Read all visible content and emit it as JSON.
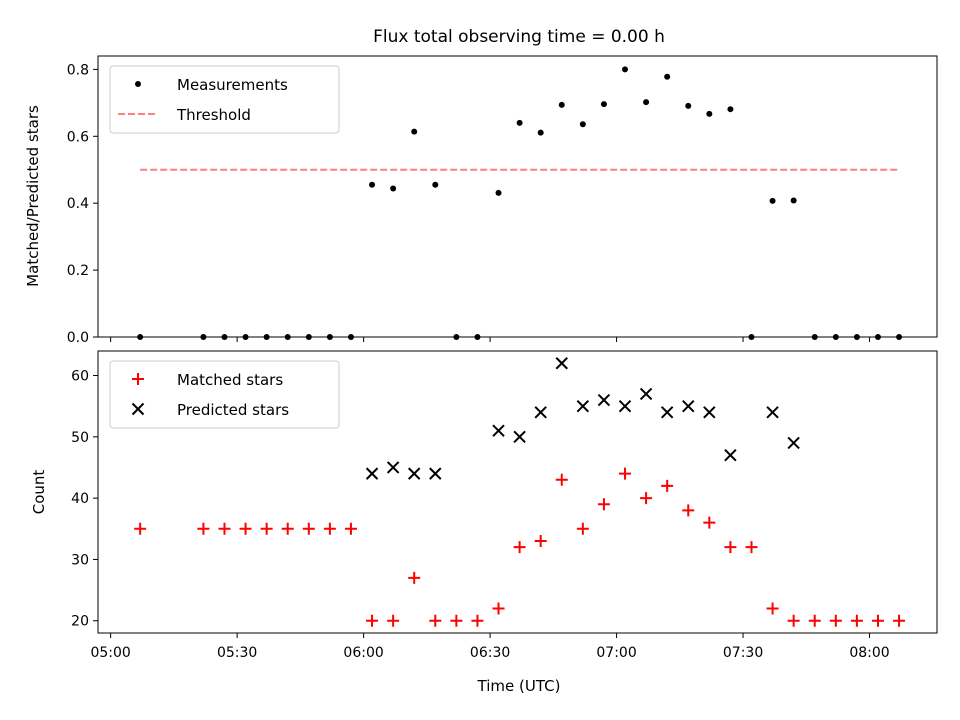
{
  "chart_data": [
    {
      "type": "scatter",
      "title": "Flux total observing time = 0.00 h",
      "xlabel": "",
      "ylabel": "Matched/Predicted stars",
      "xlim": [
        "04:57",
        "08:16"
      ],
      "ylim": [
        0,
        0.84
      ],
      "yticks": [
        0.0,
        0.2,
        0.4,
        0.6,
        0.8
      ],
      "ytick_labels": [
        "0.0",
        "0.2",
        "0.4",
        "0.6",
        "0.8"
      ],
      "legend_position": "top-left",
      "series": [
        {
          "name": "Measurements",
          "marker": "dot",
          "color": "#000000",
          "points": [
            {
              "x": "05:07",
              "y": 0.0
            },
            {
              "x": "05:22",
              "y": 0.0
            },
            {
              "x": "05:27",
              "y": 0.0
            },
            {
              "x": "05:32",
              "y": 0.0
            },
            {
              "x": "05:37",
              "y": 0.0
            },
            {
              "x": "05:42",
              "y": 0.0
            },
            {
              "x": "05:47",
              "y": 0.0
            },
            {
              "x": "05:52",
              "y": 0.0
            },
            {
              "x": "05:57",
              "y": 0.0
            },
            {
              "x": "06:02",
              "y": 0.455
            },
            {
              "x": "06:07",
              "y": 0.444
            },
            {
              "x": "06:12",
              "y": 0.614
            },
            {
              "x": "06:17",
              "y": 0.455
            },
            {
              "x": "06:22",
              "y": 0.0
            },
            {
              "x": "06:27",
              "y": 0.0
            },
            {
              "x": "06:32",
              "y": 0.431
            },
            {
              "x": "06:37",
              "y": 0.64
            },
            {
              "x": "06:42",
              "y": 0.611
            },
            {
              "x": "06:47",
              "y": 0.694
            },
            {
              "x": "06:52",
              "y": 0.636
            },
            {
              "x": "06:57",
              "y": 0.696
            },
            {
              "x": "07:02",
              "y": 0.8
            },
            {
              "x": "07:07",
              "y": 0.702
            },
            {
              "x": "07:12",
              "y": 0.778
            },
            {
              "x": "07:17",
              "y": 0.691
            },
            {
              "x": "07:22",
              "y": 0.667
            },
            {
              "x": "07:27",
              "y": 0.681
            },
            {
              "x": "07:32",
              "y": 0.0
            },
            {
              "x": "07:37",
              "y": 0.407
            },
            {
              "x": "07:42",
              "y": 0.408
            },
            {
              "x": "07:47",
              "y": 0.0
            },
            {
              "x": "07:52",
              "y": 0.0
            },
            {
              "x": "07:57",
              "y": 0.0
            },
            {
              "x": "08:02",
              "y": 0.0
            },
            {
              "x": "08:07",
              "y": 0.0
            }
          ]
        },
        {
          "name": "Threshold",
          "marker": "dashed-line",
          "color": "#ff7f7f",
          "points": [
            {
              "x": "05:07",
              "y": 0.5
            },
            {
              "x": "08:07",
              "y": 0.5
            }
          ]
        }
      ]
    },
    {
      "type": "scatter",
      "title": "",
      "xlabel": "Time (UTC)",
      "ylabel": "Count",
      "xlim": [
        "04:57",
        "08:16"
      ],
      "ylim": [
        18,
        64
      ],
      "xticks": [
        "05:00",
        "05:30",
        "06:00",
        "06:30",
        "07:00",
        "07:30",
        "08:00"
      ],
      "yticks": [
        20,
        30,
        40,
        50,
        60
      ],
      "ytick_labels": [
        "20",
        "30",
        "40",
        "50",
        "60"
      ],
      "legend_position": "top-left",
      "series": [
        {
          "name": "Matched stars",
          "marker": "plus",
          "color": "#ff0000",
          "points": [
            {
              "x": "05:07",
              "y": 35
            },
            {
              "x": "05:22",
              "y": 35
            },
            {
              "x": "05:27",
              "y": 35
            },
            {
              "x": "05:32",
              "y": 35
            },
            {
              "x": "05:37",
              "y": 35
            },
            {
              "x": "05:42",
              "y": 35
            },
            {
              "x": "05:47",
              "y": 35
            },
            {
              "x": "05:52",
              "y": 35
            },
            {
              "x": "05:57",
              "y": 35
            },
            {
              "x": "06:02",
              "y": 20
            },
            {
              "x": "06:07",
              "y": 20
            },
            {
              "x": "06:12",
              "y": 27
            },
            {
              "x": "06:17",
              "y": 20
            },
            {
              "x": "06:22",
              "y": 20
            },
            {
              "x": "06:27",
              "y": 20
            },
            {
              "x": "06:32",
              "y": 22
            },
            {
              "x": "06:37",
              "y": 32
            },
            {
              "x": "06:42",
              "y": 33
            },
            {
              "x": "06:47",
              "y": 43
            },
            {
              "x": "06:52",
              "y": 35
            },
            {
              "x": "06:57",
              "y": 39
            },
            {
              "x": "07:02",
              "y": 44
            },
            {
              "x": "07:07",
              "y": 40
            },
            {
              "x": "07:12",
              "y": 42
            },
            {
              "x": "07:17",
              "y": 38
            },
            {
              "x": "07:22",
              "y": 36
            },
            {
              "x": "07:27",
              "y": 32
            },
            {
              "x": "07:32",
              "y": 32
            },
            {
              "x": "07:37",
              "y": 22
            },
            {
              "x": "07:42",
              "y": 20
            },
            {
              "x": "07:47",
              "y": 20
            },
            {
              "x": "07:52",
              "y": 20
            },
            {
              "x": "07:57",
              "y": 20
            },
            {
              "x": "08:02",
              "y": 20
            },
            {
              "x": "08:07",
              "y": 20
            }
          ]
        },
        {
          "name": "Predicted stars",
          "marker": "x",
          "color": "#000000",
          "points": [
            {
              "x": "06:02",
              "y": 44
            },
            {
              "x": "06:07",
              "y": 45
            },
            {
              "x": "06:12",
              "y": 44
            },
            {
              "x": "06:17",
              "y": 44
            },
            {
              "x": "06:32",
              "y": 51
            },
            {
              "x": "06:37",
              "y": 50
            },
            {
              "x": "06:42",
              "y": 54
            },
            {
              "x": "06:47",
              "y": 62
            },
            {
              "x": "06:52",
              "y": 55
            },
            {
              "x": "06:57",
              "y": 56
            },
            {
              "x": "07:02",
              "y": 55
            },
            {
              "x": "07:07",
              "y": 57
            },
            {
              "x": "07:12",
              "y": 54
            },
            {
              "x": "07:17",
              "y": 55
            },
            {
              "x": "07:22",
              "y": 54
            },
            {
              "x": "07:27",
              "y": 47
            },
            {
              "x": "07:37",
              "y": 54
            },
            {
              "x": "07:42",
              "y": 49
            }
          ]
        }
      ]
    }
  ]
}
